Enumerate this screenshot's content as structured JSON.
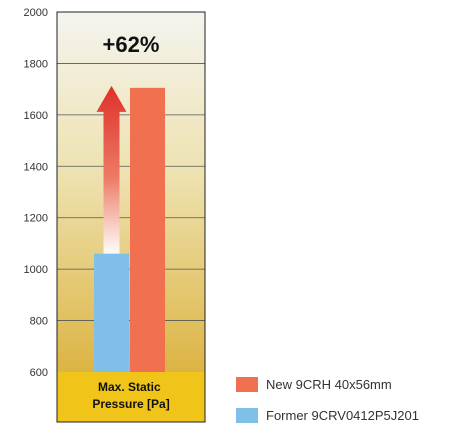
{
  "chart_data": {
    "type": "bar",
    "categories": [
      "Max. Static Pressure [Pa]"
    ],
    "category_lines": [
      "Max. Static",
      "Pressure [Pa]"
    ],
    "series": [
      {
        "name": "Former 9CRV0412P5J201",
        "values": [
          1060
        ],
        "color": "#7fbfe8"
      },
      {
        "name": "New 9CRH 40x56mm",
        "values": [
          1705
        ],
        "color": "#f07050"
      }
    ],
    "ylim": [
      600,
      2000
    ],
    "yticks": [
      "600",
      "800",
      "1000",
      "1200",
      "1400",
      "1600",
      "1800",
      "2000"
    ],
    "annotation": "+62%",
    "grid": true,
    "legend_position": "bottom-right",
    "legend": [
      {
        "label": "New 9CRH 40x56mm",
        "color": "#f07050"
      },
      {
        "label": "Former 9CRV0412P5J201",
        "color": "#7fbfe8"
      }
    ],
    "arrow_color": "#e03028"
  }
}
